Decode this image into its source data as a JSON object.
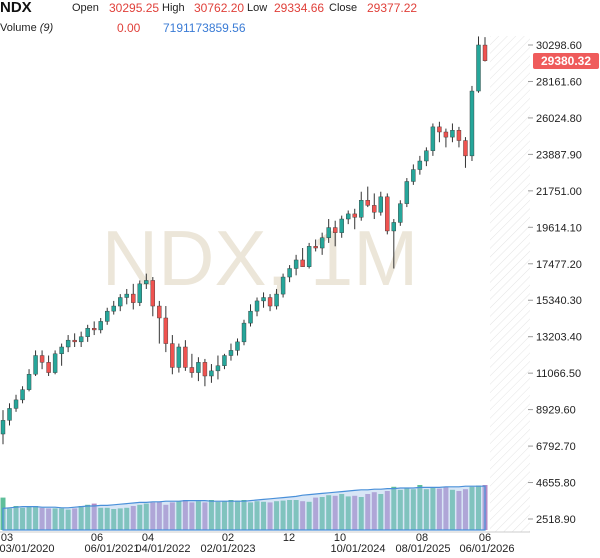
{
  "header": {
    "symbol": "NDX",
    "open_label": "Open",
    "open_value": "30295.25",
    "high_label": "High",
    "high_value": "30762.20",
    "low_label": "Low",
    "low_value": "29334.66",
    "close_label": "Close",
    "close_value": "29377.22",
    "volume_label": "Volume",
    "volume_param": "(9)",
    "volume_value": "0.00",
    "volume_ma_value": "7191173859.56"
  },
  "watermark": "NDX, 1M",
  "last_price_badge": "29380.32",
  "colors": {
    "up": "#26a69a",
    "down": "#ef5350",
    "wick": "#333333",
    "volume_up": "#5fbf9a",
    "volume_down": "#b58bc6",
    "volume_ma_line": "#4a90d9",
    "badge": "#ef5b5b",
    "watermark": "#ece6d9"
  },
  "chart_data": {
    "type": "candlestick",
    "y_axis": {
      "ticks": [
        "30298.60",
        "28161.60",
        "26024.80",
        "23887.90",
        "21751.00",
        "19614.10",
        "17477.20",
        "15340.30",
        "13203.40",
        "11066.50",
        "8929.60",
        "6792.70",
        "4655.80",
        "2518.90"
      ],
      "range": [
        2000,
        31000
      ]
    },
    "x_axis": {
      "ticks": [
        "03",
        "03/01/2020",
        "06",
        "06/01/2021",
        "04",
        "04/01/2022",
        "02",
        "02/01/2023",
        "12",
        "10",
        "10/01/2024",
        "08",
        "08/01/2025",
        "06",
        "06/01/2026"
      ]
    },
    "candles": [
      {
        "o": 7500,
        "h": 8900,
        "l": 6900,
        "c": 8300
      },
      {
        "o": 8300,
        "h": 9300,
        "l": 8000,
        "c": 9000
      },
      {
        "o": 9000,
        "h": 9800,
        "l": 8800,
        "c": 9500
      },
      {
        "o": 9500,
        "h": 10300,
        "l": 9300,
        "c": 10100
      },
      {
        "o": 10100,
        "h": 11300,
        "l": 10000,
        "c": 11000
      },
      {
        "o": 11000,
        "h": 12400,
        "l": 10900,
        "c": 12100
      },
      {
        "o": 12100,
        "h": 12400,
        "l": 11300,
        "c": 11700
      },
      {
        "o": 11700,
        "h": 12100,
        "l": 10900,
        "c": 11100
      },
      {
        "o": 11100,
        "h": 12400,
        "l": 11000,
        "c": 12200
      },
      {
        "o": 12200,
        "h": 12800,
        "l": 11500,
        "c": 12600
      },
      {
        "o": 12600,
        "h": 13300,
        "l": 12300,
        "c": 13000
      },
      {
        "o": 13000,
        "h": 13400,
        "l": 12600,
        "c": 12900
      },
      {
        "o": 12900,
        "h": 13500,
        "l": 12600,
        "c": 13200
      },
      {
        "o": 13200,
        "h": 13900,
        "l": 12900,
        "c": 13700
      },
      {
        "o": 13700,
        "h": 14100,
        "l": 13300,
        "c": 13600
      },
      {
        "o": 13600,
        "h": 14300,
        "l": 13400,
        "c": 14100
      },
      {
        "o": 14100,
        "h": 14900,
        "l": 13900,
        "c": 14700
      },
      {
        "o": 14700,
        "h": 15300,
        "l": 14500,
        "c": 15000
      },
      {
        "o": 15000,
        "h": 15700,
        "l": 14700,
        "c": 15500
      },
      {
        "o": 15500,
        "h": 16000,
        "l": 15100,
        "c": 15700
      },
      {
        "o": 15700,
        "h": 16300,
        "l": 14800,
        "c": 15200
      },
      {
        "o": 15200,
        "h": 16500,
        "l": 15000,
        "c": 16300
      },
      {
        "o": 16300,
        "h": 16900,
        "l": 16000,
        "c": 16500
      },
      {
        "o": 16500,
        "h": 16700,
        "l": 14400,
        "c": 15000
      },
      {
        "o": 15000,
        "h": 15300,
        "l": 12800,
        "c": 14300
      },
      {
        "o": 14300,
        "h": 15000,
        "l": 12300,
        "c": 12800
      },
      {
        "o": 12800,
        "h": 13300,
        "l": 11000,
        "c": 11400
      },
      {
        "o": 11400,
        "h": 12800,
        "l": 11100,
        "c": 12600
      },
      {
        "o": 12600,
        "h": 13000,
        "l": 11200,
        "c": 11400
      },
      {
        "o": 11400,
        "h": 12200,
        "l": 10800,
        "c": 11100
      },
      {
        "o": 11100,
        "h": 12000,
        "l": 10600,
        "c": 11700
      },
      {
        "o": 11700,
        "h": 11900,
        "l": 10300,
        "c": 10900
      },
      {
        "o": 10900,
        "h": 11600,
        "l": 10500,
        "c": 11200
      },
      {
        "o": 11200,
        "h": 12100,
        "l": 10700,
        "c": 11500
      },
      {
        "o": 11500,
        "h": 12200,
        "l": 11300,
        "c": 12100
      },
      {
        "o": 12100,
        "h": 12800,
        "l": 11800,
        "c": 12400
      },
      {
        "o": 12400,
        "h": 13100,
        "l": 12100,
        "c": 12900
      },
      {
        "o": 12900,
        "h": 14200,
        "l": 12700,
        "c": 14000
      },
      {
        "o": 14000,
        "h": 15100,
        "l": 13800,
        "c": 14700
      },
      {
        "o": 14700,
        "h": 15500,
        "l": 14400,
        "c": 15300
      },
      {
        "o": 15300,
        "h": 15800,
        "l": 14900,
        "c": 15500
      },
      {
        "o": 15500,
        "h": 15700,
        "l": 14700,
        "c": 15000
      },
      {
        "o": 15000,
        "h": 16000,
        "l": 14800,
        "c": 15700
      },
      {
        "o": 15700,
        "h": 16900,
        "l": 15500,
        "c": 16700
      },
      {
        "o": 16700,
        "h": 17400,
        "l": 16400,
        "c": 17200
      },
      {
        "o": 17200,
        "h": 18000,
        "l": 16800,
        "c": 17700
      },
      {
        "o": 17700,
        "h": 18400,
        "l": 17300,
        "c": 17300
      },
      {
        "o": 17300,
        "h": 18700,
        "l": 17200,
        "c": 18500
      },
      {
        "o": 18500,
        "h": 18900,
        "l": 18200,
        "c": 18400
      },
      {
        "o": 18400,
        "h": 19300,
        "l": 18000,
        "c": 19000
      },
      {
        "o": 19000,
        "h": 20100,
        "l": 18700,
        "c": 19600
      },
      {
        "o": 19600,
        "h": 20000,
        "l": 18500,
        "c": 19300
      },
      {
        "o": 19300,
        "h": 20300,
        "l": 19000,
        "c": 20100
      },
      {
        "o": 20100,
        "h": 20600,
        "l": 19800,
        "c": 20400
      },
      {
        "o": 20400,
        "h": 20700,
        "l": 19500,
        "c": 20200
      },
      {
        "o": 20200,
        "h": 21700,
        "l": 20000,
        "c": 21200
      },
      {
        "o": 21200,
        "h": 22000,
        "l": 20800,
        "c": 20900
      },
      {
        "o": 20900,
        "h": 21600,
        "l": 20100,
        "c": 20500
      },
      {
        "o": 20500,
        "h": 21700,
        "l": 20300,
        "c": 21400
      },
      {
        "o": 21400,
        "h": 21600,
        "l": 19200,
        "c": 19400
      },
      {
        "o": 19400,
        "h": 20100,
        "l": 17200,
        "c": 19900
      },
      {
        "o": 19900,
        "h": 21200,
        "l": 19700,
        "c": 21000
      },
      {
        "o": 21000,
        "h": 22500,
        "l": 20800,
        "c": 22300
      },
      {
        "o": 22300,
        "h": 23300,
        "l": 22100,
        "c": 23000
      },
      {
        "o": 23000,
        "h": 23800,
        "l": 22700,
        "c": 23500
      },
      {
        "o": 23500,
        "h": 24300,
        "l": 23200,
        "c": 24100
      },
      {
        "o": 24100,
        "h": 25700,
        "l": 23800,
        "c": 25500
      },
      {
        "o": 25500,
        "h": 25800,
        "l": 24600,
        "c": 25200
      },
      {
        "o": 25200,
        "h": 25400,
        "l": 24300,
        "c": 24900
      },
      {
        "o": 24900,
        "h": 25700,
        "l": 24600,
        "c": 25300
      },
      {
        "o": 25300,
        "h": 25500,
        "l": 24300,
        "c": 24700
      },
      {
        "o": 24700,
        "h": 24900,
        "l": 23100,
        "c": 23800
      },
      {
        "o": 23800,
        "h": 27900,
        "l": 23500,
        "c": 27600
      },
      {
        "o": 27600,
        "h": 30800,
        "l": 27500,
        "c": 30300
      },
      {
        "o": 30295,
        "h": 30762,
        "l": 29335,
        "c": 29377
      }
    ],
    "volume_heights": [
      0.54,
      0.36,
      0.4,
      0.37,
      0.4,
      0.4,
      0.37,
      0.36,
      0.36,
      0.36,
      0.34,
      0.36,
      0.4,
      0.42,
      0.44,
      0.37,
      0.37,
      0.35,
      0.36,
      0.37,
      0.4,
      0.42,
      0.44,
      0.46,
      0.47,
      0.42,
      0.46,
      0.48,
      0.5,
      0.46,
      0.48,
      0.46,
      0.5,
      0.47,
      0.48,
      0.5,
      0.49,
      0.5,
      0.46,
      0.48,
      0.47,
      0.46,
      0.48,
      0.49,
      0.5,
      0.5,
      0.48,
      0.47,
      0.54,
      0.55,
      0.58,
      0.57,
      0.6,
      0.56,
      0.57,
      0.55,
      0.6,
      0.63,
      0.6,
      0.65,
      0.72,
      0.67,
      0.7,
      0.68,
      0.75,
      0.68,
      0.7,
      0.69,
      0.72,
      0.67,
      0.65,
      0.68,
      0.72,
      0.74,
      0.75
    ],
    "volume_ma": [
      0.36,
      0.37,
      0.38,
      0.39,
      0.39,
      0.39,
      0.38,
      0.38,
      0.38,
      0.37,
      0.37,
      0.38,
      0.39,
      0.4,
      0.4,
      0.41,
      0.41,
      0.42,
      0.43,
      0.44,
      0.45,
      0.46,
      0.46,
      0.47,
      0.47,
      0.48,
      0.48,
      0.48,
      0.49,
      0.49,
      0.49,
      0.49,
      0.48,
      0.48,
      0.48,
      0.48,
      0.48,
      0.48,
      0.49,
      0.5,
      0.51,
      0.52,
      0.53,
      0.54,
      0.55,
      0.56,
      0.58,
      0.59,
      0.6,
      0.61,
      0.62,
      0.63,
      0.64,
      0.65,
      0.66,
      0.67,
      0.67,
      0.68,
      0.68,
      0.69,
      0.69,
      0.7,
      0.7,
      0.7,
      0.71,
      0.71,
      0.71,
      0.71,
      0.72,
      0.72,
      0.72,
      0.73,
      0.73,
      0.73,
      0.73
    ]
  }
}
